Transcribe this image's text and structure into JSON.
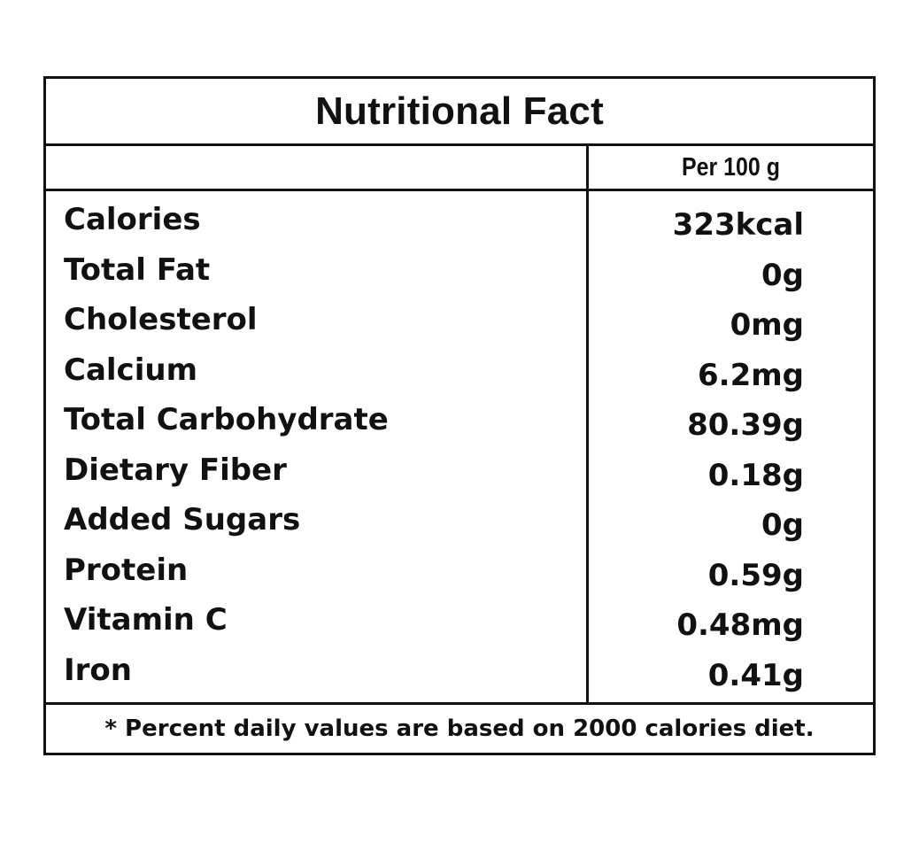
{
  "label": {
    "title": "Nutritional Fact",
    "per_header": "Per 100 g",
    "rows": [
      {
        "name": "Calories",
        "value": "323kcal"
      },
      {
        "name": "Total Fat",
        "value": "0g"
      },
      {
        "name": "Cholesterol",
        "value": "0mg"
      },
      {
        "name": "Calcium",
        "value": "6.2mg"
      },
      {
        "name": "Total Carbohydrate",
        "value": "80.39g"
      },
      {
        "name": "Dietary Fiber",
        "value": "0.18g"
      },
      {
        "name": "Added Sugars",
        "value": "0g"
      },
      {
        "name": "Protein",
        "value": "0.59g"
      },
      {
        "name": "Vitamin C",
        "value": "0.48mg"
      },
      {
        "name": "Iron",
        "value": "0.41g"
      }
    ],
    "footnote": "*  Percent daily values are based on 2000 calories diet."
  },
  "colors": {
    "border": "#111111",
    "text": "#111111",
    "background": "#ffffff"
  }
}
